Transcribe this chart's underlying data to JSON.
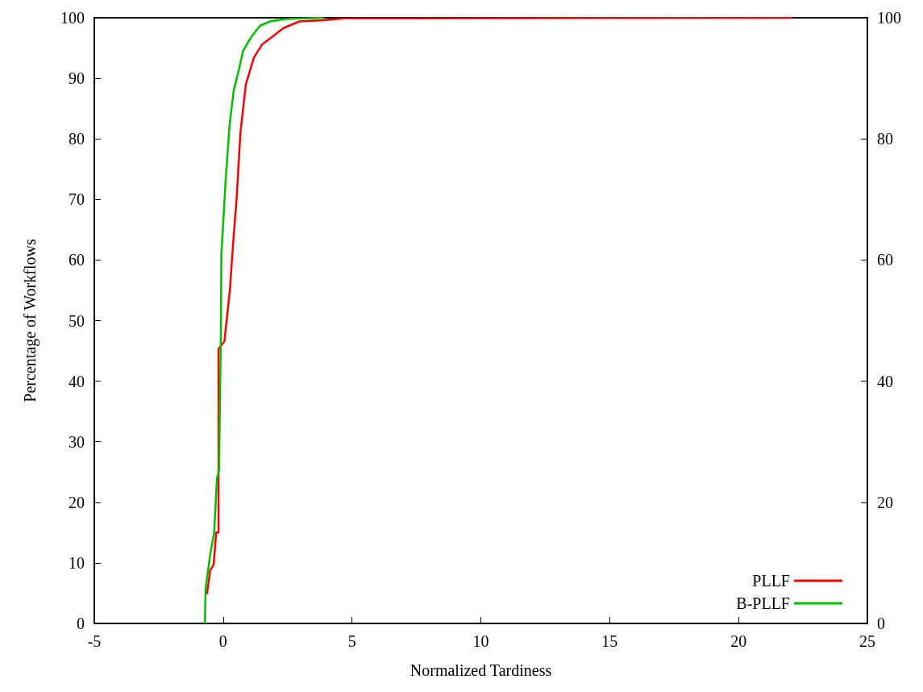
{
  "chart_data": {
    "type": "line",
    "xlabel": "Normalized Tardiness",
    "ylabel": "Percentage of Workflows",
    "xlim": [
      -5,
      25
    ],
    "xticks": [
      -5,
      0,
      5,
      10,
      15,
      20,
      25
    ],
    "ylim": [
      0,
      100
    ],
    "yticks": [
      0,
      10,
      20,
      30,
      40,
      50,
      60,
      70,
      80,
      90,
      100
    ],
    "y2lim": [
      0,
      100
    ],
    "y2ticks": [
      0,
      20,
      40,
      60,
      80,
      100
    ],
    "grid": false,
    "legend": "bottom right",
    "marker": "none",
    "line_style": "solid",
    "series": [
      {
        "name": "PLLF",
        "color": "#ff0000",
        "x": [
          -0.63,
          -0.5,
          -0.37,
          -0.27,
          -0.18,
          -0.18,
          0.05,
          0.15,
          0.26,
          0.39,
          0.52,
          0.67,
          0.88,
          1.19,
          1.51,
          1.92,
          2.34,
          2.96,
          3.9,
          4.7,
          22.1
        ],
        "values": [
          4.8,
          8.8,
          9.7,
          15,
          15,
          45.3,
          46.6,
          50.6,
          55,
          63,
          70,
          81,
          89,
          93.4,
          95.6,
          96.9,
          98.3,
          99.4,
          99.6,
          99.9,
          100
        ]
      },
      {
        "name": "B-PLLF",
        "color": "#00c000",
        "x": [
          -0.71,
          -0.68,
          -0.5,
          -0.35,
          -0.24,
          -0.16,
          -0.09,
          -0.07,
          0.1,
          0.25,
          0.41,
          0.62,
          0.77,
          0.97,
          1.19,
          1.44,
          1.82,
          2.44,
          3.9
        ],
        "values": [
          0,
          5.7,
          11.5,
          15,
          24,
          25.3,
          47.4,
          61,
          73.4,
          82.3,
          88,
          91.6,
          94.5,
          96,
          97.4,
          98.7,
          99.4,
          99.8,
          100
        ]
      }
    ]
  }
}
